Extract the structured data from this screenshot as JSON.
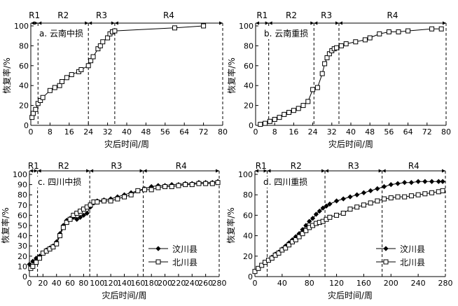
{
  "chart_data": [
    {
      "type": "line",
      "title": "a. 云南中损",
      "xlabel": "灾后时间/周",
      "ylabel": "恢复率/%",
      "xlim": [
        0,
        80
      ],
      "ylim": [
        0,
        100
      ],
      "xticks": [
        0,
        8,
        16,
        24,
        32,
        40,
        48,
        56,
        64,
        72,
        80
      ],
      "yticks": [
        0,
        20,
        40,
        60,
        80,
        100
      ],
      "phase_breaks": [
        3,
        24,
        35
      ],
      "phases": [
        {
          "label": "R1",
          "from": 0,
          "to": 3
        },
        {
          "label": "R2",
          "from": 3,
          "to": 24
        },
        {
          "label": "R3",
          "from": 24,
          "to": 35
        },
        {
          "label": "R4",
          "from": 35,
          "to": 80
        }
      ],
      "series": [
        {
          "marker": "square",
          "x": [
            0.5,
            1,
            2,
            3,
            4,
            5,
            8,
            10,
            12,
            13,
            15,
            17,
            20,
            21,
            24,
            25,
            26,
            28,
            29,
            30,
            32,
            33,
            34,
            35,
            60,
            72
          ],
          "y": [
            8,
            12,
            16,
            22,
            25,
            28,
            35,
            38,
            40,
            44,
            48,
            51,
            54,
            56,
            60,
            65,
            69,
            77,
            80,
            84,
            88,
            92,
            94,
            95,
            98,
            100
          ]
        }
      ]
    },
    {
      "type": "line",
      "title": "b. 云南重损",
      "xlabel": "灾后时间/周",
      "ylabel": "恢复率/%",
      "xlim": [
        0,
        80
      ],
      "ylim": [
        0,
        100
      ],
      "xticks": [
        0,
        8,
        16,
        24,
        32,
        40,
        48,
        56,
        64,
        72,
        80
      ],
      "yticks": [
        0,
        20,
        40,
        60,
        80,
        100
      ],
      "phase_breaks": [
        5.5,
        24.5,
        35
      ],
      "phases": [
        {
          "label": "R1",
          "from": 0,
          "to": 5.5
        },
        {
          "label": "R2",
          "from": 5.5,
          "to": 24.5
        },
        {
          "label": "R3",
          "from": 24.5,
          "to": 35
        },
        {
          "label": "R4",
          "from": 35,
          "to": 80
        }
      ],
      "series": [
        {
          "marker": "square",
          "x": [
            2,
            4,
            6,
            8,
            10,
            12,
            14,
            16,
            18,
            20,
            22,
            24,
            26,
            28,
            29,
            30,
            31,
            32,
            33,
            34,
            36,
            38,
            42,
            46,
            48,
            52,
            56,
            60,
            64,
            74,
            78
          ],
          "y": [
            1,
            2,
            4,
            6,
            8,
            11,
            13,
            15,
            17,
            20,
            24,
            36,
            38,
            52,
            62,
            68,
            72,
            75,
            77,
            78,
            80,
            82,
            84,
            86,
            88,
            92,
            94,
            94,
            95,
            97,
            97
          ]
        }
      ]
    },
    {
      "type": "line",
      "title": "c. 四川中损",
      "xlabel": "灾后时间/周",
      "ylabel": "恢复率/%",
      "xlim": [
        0,
        280
      ],
      "ylim": [
        0,
        100
      ],
      "xticks": [
        0,
        20,
        40,
        60,
        80,
        100,
        120,
        140,
        160,
        180,
        200,
        220,
        240,
        260,
        280
      ],
      "yticks": [
        0,
        10,
        20,
        30,
        40,
        50,
        60,
        70,
        80,
        90,
        100
      ],
      "phase_breaks": [
        12,
        89,
        168
      ],
      "phases": [
        {
          "label": "R1",
          "from": 0,
          "to": 12
        },
        {
          "label": "R2",
          "from": 12,
          "to": 89
        },
        {
          "label": "R3",
          "from": 89,
          "to": 168
        },
        {
          "label": "R4",
          "from": 168,
          "to": 280
        }
      ],
      "legend_position": "bottom-right",
      "series": [
        {
          "name": "汶川县",
          "marker": "diamond",
          "x": [
            0,
            5,
            10,
            15,
            20,
            25,
            30,
            35,
            40,
            45,
            50,
            55,
            60,
            65,
            70,
            75,
            80,
            85,
            90,
            95,
            100,
            110,
            120,
            130,
            140,
            150,
            160,
            170,
            180,
            190,
            200,
            210,
            220,
            230,
            240,
            250,
            260,
            270,
            278
          ],
          "y": [
            12,
            15,
            18,
            20,
            23,
            26,
            28,
            30,
            34,
            42,
            50,
            55,
            57,
            58,
            56,
            58,
            60,
            62,
            68,
            72,
            74,
            75,
            76,
            78,
            80,
            82,
            84,
            86,
            88,
            89,
            89,
            90,
            90,
            91,
            91,
            92,
            92,
            92,
            93
          ]
        },
        {
          "name": "北川县",
          "marker": "square",
          "x": [
            2,
            5,
            10,
            15,
            20,
            25,
            30,
            35,
            40,
            45,
            50,
            55,
            60,
            65,
            70,
            75,
            80,
            85,
            90,
            95,
            100,
            110,
            120,
            130,
            140,
            150,
            160,
            170,
            180,
            190,
            200,
            210,
            220,
            230,
            240,
            250,
            260,
            270,
            278
          ],
          "y": [
            8,
            10,
            14,
            18,
            23,
            25,
            27,
            29,
            32,
            40,
            48,
            53,
            56,
            60,
            62,
            64,
            66,
            68,
            70,
            73,
            73,
            74,
            74,
            76,
            78,
            80,
            84,
            85,
            85,
            87,
            88,
            88,
            89,
            90,
            90,
            91,
            91,
            91,
            92
          ]
        }
      ]
    },
    {
      "type": "line",
      "title": "d. 四川重损",
      "xlabel": "灾后时间/周",
      "ylabel": "恢复率/%",
      "xlim": [
        0,
        280
      ],
      "ylim": [
        0,
        100
      ],
      "xticks": [
        0,
        40,
        80,
        120,
        160,
        200,
        240,
        280
      ],
      "yticks": [
        0,
        20,
        40,
        60,
        80,
        100
      ],
      "phase_breaks": [
        18,
        103,
        187
      ],
      "phases": [
        {
          "label": "R1",
          "from": 0,
          "to": 18
        },
        {
          "label": "R2",
          "from": 18,
          "to": 103
        },
        {
          "label": "R3",
          "from": 103,
          "to": 187
        },
        {
          "label": "R4",
          "from": 187,
          "to": 280
        }
      ],
      "legend_position": "bottom-right",
      "series": [
        {
          "name": "汶川县",
          "marker": "diamond",
          "x": [
            0,
            5,
            10,
            15,
            20,
            25,
            30,
            35,
            40,
            45,
            50,
            55,
            60,
            65,
            70,
            75,
            80,
            85,
            90,
            95,
            100,
            105,
            110,
            120,
            130,
            140,
            150,
            160,
            170,
            180,
            190,
            200,
            210,
            220,
            230,
            240,
            250,
            260,
            270,
            276
          ],
          "y": [
            5,
            8,
            11,
            14,
            16,
            19,
            22,
            24,
            27,
            30,
            33,
            36,
            39,
            42,
            46,
            50,
            54,
            57,
            61,
            64,
            67,
            69,
            71,
            74,
            76,
            78,
            80,
            82,
            84,
            86,
            88,
            90,
            91,
            92,
            92,
            93,
            93,
            93,
            93,
            93
          ]
        },
        {
          "name": "北川县",
          "marker": "square",
          "x": [
            0,
            5,
            10,
            15,
            20,
            25,
            30,
            35,
            40,
            45,
            50,
            55,
            60,
            65,
            70,
            75,
            80,
            85,
            90,
            95,
            100,
            105,
            110,
            120,
            130,
            140,
            150,
            160,
            170,
            180,
            190,
            200,
            210,
            220,
            230,
            240,
            250,
            260,
            270,
            276
          ],
          "y": [
            5,
            8,
            11,
            14,
            16,
            18,
            21,
            23,
            26,
            28,
            31,
            34,
            36,
            39,
            42,
            45,
            48,
            50,
            52,
            53,
            54,
            56,
            58,
            60,
            62,
            66,
            68,
            70,
            72,
            74,
            76,
            77,
            78,
            78,
            79,
            80,
            81,
            82,
            83,
            84
          ]
        }
      ]
    }
  ]
}
